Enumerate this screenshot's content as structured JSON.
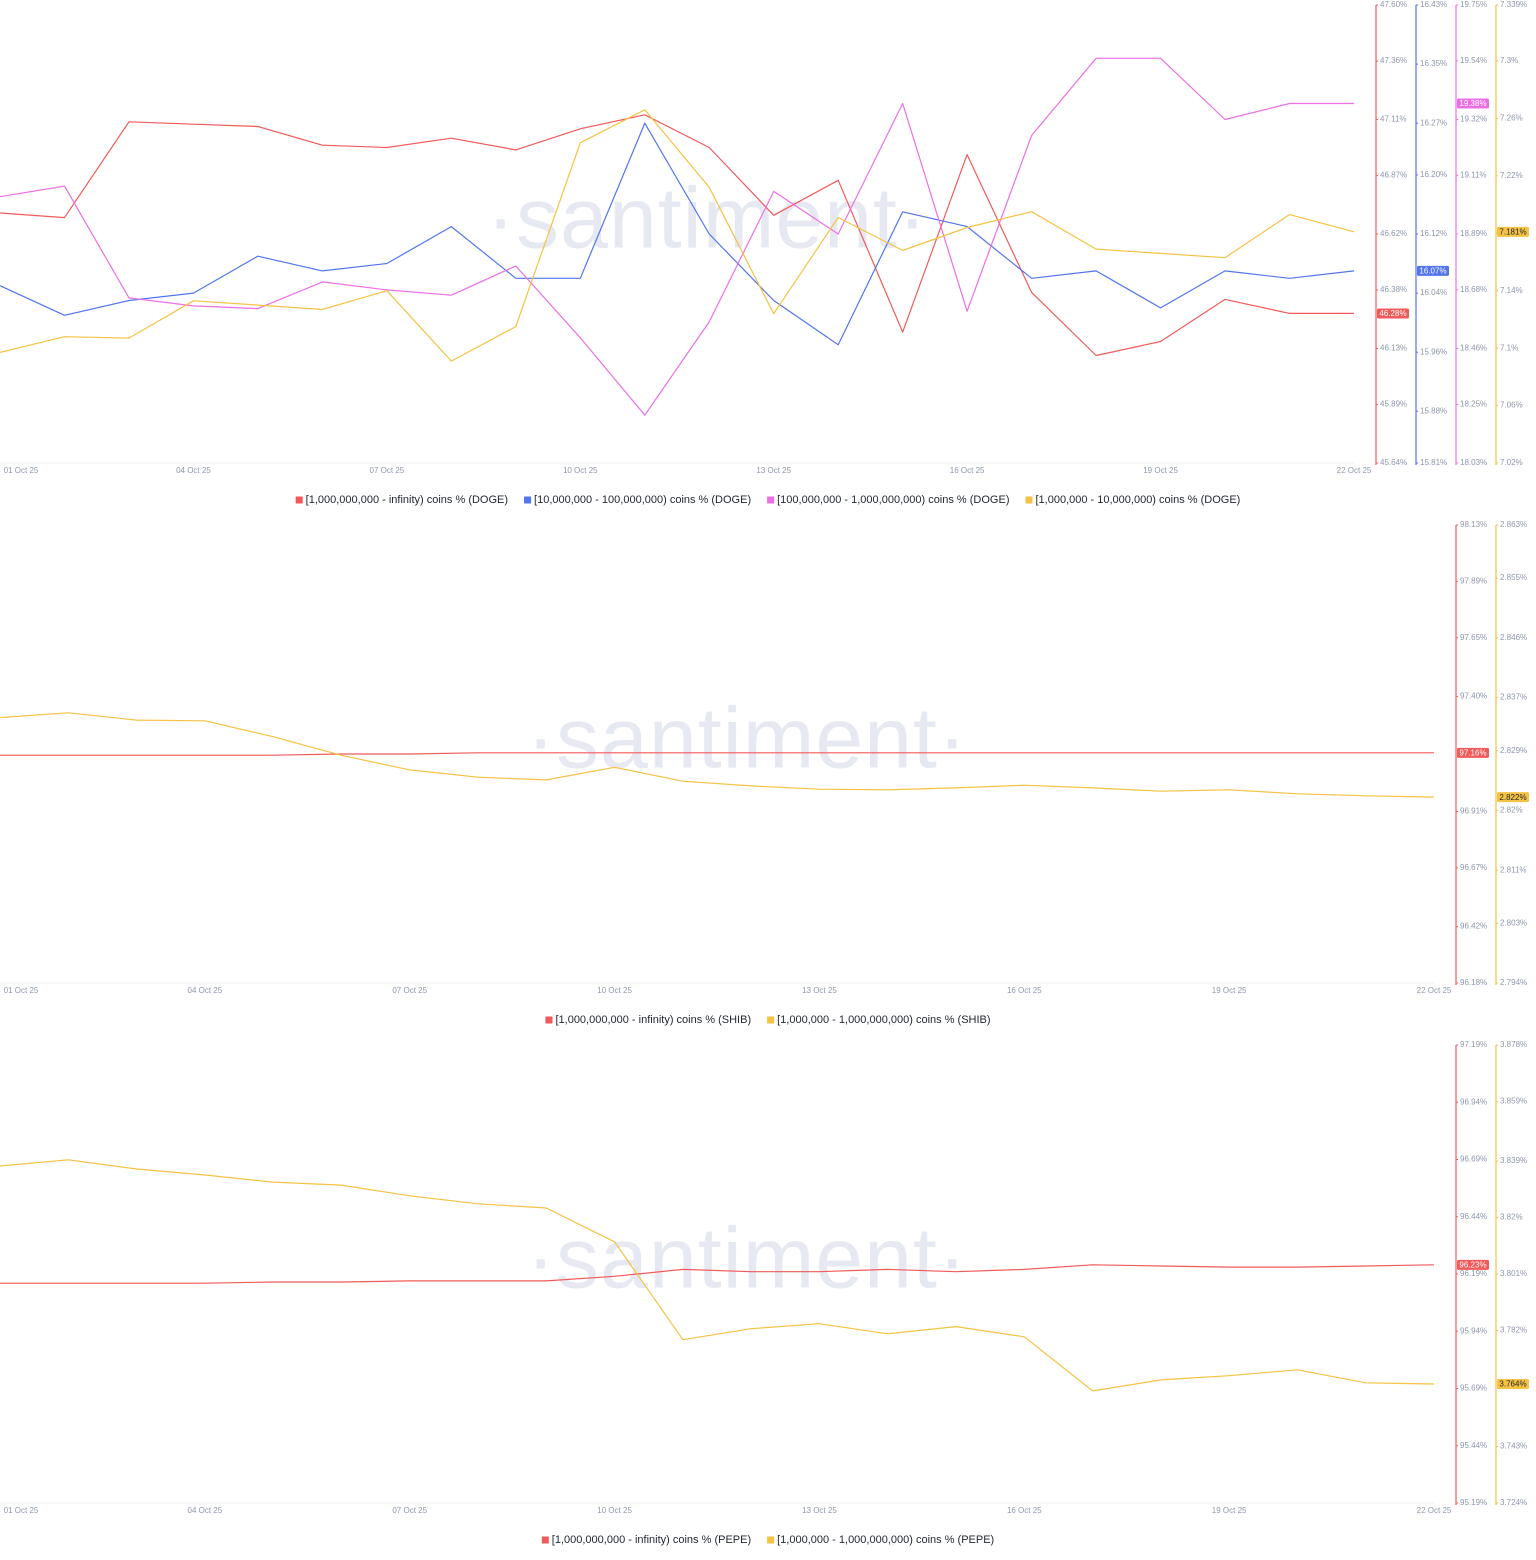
{
  "chart_data": [
    {
      "type": "line",
      "watermark": "·santiment·",
      "categories": [
        "01 Oct 25",
        null,
        null,
        "04 Oct 25",
        null,
        null,
        "07 Oct 25",
        null,
        null,
        "10 Oct 25",
        null,
        null,
        "13 Oct 25",
        null,
        null,
        "16 Oct 25",
        null,
        null,
        "19 Oct 25",
        null,
        null,
        "22 Oct 25"
      ],
      "series": [
        {
          "name": "[1,000,000,000 - infinity) coins % (DOGE)",
          "color": "#f25a5a",
          "last_value_label": "46.28%",
          "values": [
            46.71,
            46.69,
            47.1,
            47.09,
            47.08,
            47.0,
            46.99,
            47.03,
            46.98,
            47.07,
            47.13,
            46.99,
            46.7,
            46.85,
            46.2,
            46.96,
            46.37,
            46.1,
            46.16,
            46.34,
            46.28,
            46.28
          ],
          "ylim": [
            45.64,
            47.6
          ],
          "yticks": [
            {
              "value": 47.6,
              "label": "47.60%"
            },
            {
              "value": 47.36,
              "label": "47.36%"
            },
            {
              "value": 47.11,
              "label": "47.11%"
            },
            {
              "value": 46.87,
              "label": "46.87%"
            },
            {
              "value": 46.62,
              "label": "46.62%"
            },
            {
              "value": 46.38,
              "label": "46.38%"
            },
            {
              "value": 46.13,
              "label": "46.13%"
            },
            {
              "value": 45.89,
              "label": "45.89%"
            },
            {
              "value": 45.64,
              "label": "45.64%"
            }
          ]
        },
        {
          "name": "[10,000,000 - 100,000,000) coins % (DOGE)",
          "color": "#5274ef",
          "last_value_label": "16.07%",
          "values": [
            16.05,
            16.01,
            16.03,
            16.04,
            16.09,
            16.07,
            16.08,
            16.13,
            16.06,
            16.06,
            16.27,
            16.12,
            16.03,
            15.97,
            16.15,
            16.13,
            16.06,
            16.07,
            16.02,
            16.07,
            16.06,
            16.07
          ],
          "ylim": [
            15.81,
            16.43
          ],
          "yticks": [
            {
              "value": 16.43,
              "label": "16.43%"
            },
            {
              "value": 16.35,
              "label": "16.35%"
            },
            {
              "value": 16.27,
              "label": "16.27%"
            },
            {
              "value": 16.2,
              "label": "16.20%"
            },
            {
              "value": 16.12,
              "label": "16.12%"
            },
            {
              "value": 16.04,
              "label": "16.04%"
            },
            {
              "value": 15.96,
              "label": "15.96%"
            },
            {
              "value": 15.88,
              "label": "15.88%"
            },
            {
              "value": 15.81,
              "label": "15.81%"
            }
          ]
        },
        {
          "name": "[100,000,000 - 1,000,000,000) coins % (DOGE)",
          "color": "#ec6fe6",
          "last_value_label": "19.38%",
          "values": [
            19.03,
            19.07,
            18.65,
            18.62,
            18.61,
            18.71,
            18.68,
            18.66,
            18.77,
            18.5,
            18.21,
            18.56,
            19.05,
            18.89,
            19.38,
            18.6,
            19.26,
            19.55,
            19.55,
            19.32,
            19.38,
            19.38
          ],
          "ylim": [
            18.03,
            19.75
          ],
          "yticks": [
            {
              "value": 19.75,
              "label": "19.75%"
            },
            {
              "value": 19.54,
              "label": "19.54%"
            },
            {
              "value": 19.32,
              "label": "19.32%"
            },
            {
              "value": 19.11,
              "label": "19.11%"
            },
            {
              "value": 18.89,
              "label": "18.89%"
            },
            {
              "value": 18.68,
              "label": "18.68%"
            },
            {
              "value": 18.46,
              "label": "18.46%"
            },
            {
              "value": 18.25,
              "label": "18.25%"
            },
            {
              "value": 18.03,
              "label": "18.03%"
            }
          ]
        },
        {
          "name": "[1,000,000 - 10,000,000) coins % (DOGE)",
          "color": "#f5c242",
          "last_value_label": "7.181%",
          "values": [
            7.097,
            7.108,
            7.107,
            7.133,
            7.13,
            7.127,
            7.14,
            7.091,
            7.115,
            7.243,
            7.266,
            7.212,
            7.124,
            7.191,
            7.168,
            7.184,
            7.195,
            7.169,
            7.166,
            7.163,
            7.193,
            7.181
          ],
          "ylim": [
            7.02,
            7.339
          ],
          "yticks": [
            {
              "value": 7.339,
              "label": "7.339%"
            },
            {
              "value": 7.3,
              "label": "7.3%"
            },
            {
              "value": 7.26,
              "label": "7.26%"
            },
            {
              "value": 7.22,
              "label": "7.22%"
            },
            {
              "value": 7.18,
              "label": "7.18%"
            },
            {
              "value": 7.14,
              "label": "7.14%"
            },
            {
              "value": 7.1,
              "label": "7.1%"
            },
            {
              "value": 7.06,
              "label": "7.06%"
            },
            {
              "value": 7.02,
              "label": "7.02%"
            }
          ]
        }
      ]
    },
    {
      "type": "line",
      "watermark": "·santiment·",
      "categories": [
        "01 Oct 25",
        null,
        null,
        "04 Oct 25",
        null,
        null,
        "07 Oct 25",
        null,
        null,
        "10 Oct 25",
        null,
        null,
        "13 Oct 25",
        null,
        null,
        "16 Oct 25",
        null,
        null,
        "19 Oct 25",
        null,
        null,
        "22 Oct 25"
      ],
      "series": [
        {
          "name": "[1,000,000,000 - infinity) coins % (SHIB)",
          "color": "#f25a5a",
          "last_value_label": "97.16%",
          "values": [
            97.15,
            97.15,
            97.15,
            97.15,
            97.15,
            97.155,
            97.155,
            97.16,
            97.16,
            97.16,
            97.16,
            97.16,
            97.16,
            97.16,
            97.16,
            97.16,
            97.16,
            97.16,
            97.16,
            97.16,
            97.16,
            97.16
          ],
          "ylim": [
            96.18,
            98.13
          ],
          "yticks": [
            {
              "value": 98.13,
              "label": "98.13%"
            },
            {
              "value": 97.89,
              "label": "97.89%"
            },
            {
              "value": 97.65,
              "label": "97.65%"
            },
            {
              "value": 97.4,
              "label": "97.40%"
            },
            {
              "value": 96.91,
              "label": "96.91%"
            },
            {
              "value": 96.67,
              "label": "96.67%"
            },
            {
              "value": 96.42,
              "label": "96.42%"
            },
            {
              "value": 96.18,
              "label": "96.18%"
            }
          ]
        },
        {
          "name": "[1,000,000 - 1,000,000,000) coins % (SHIB)",
          "color": "#f5c242",
          "last_value_label": "2.822%",
          "values": [
            2.834,
            2.8347,
            2.8336,
            2.8335,
            2.8311,
            2.8283,
            2.8261,
            2.825,
            2.8246,
            2.8265,
            2.8244,
            2.8237,
            2.8232,
            2.8231,
            2.8234,
            2.8238,
            2.8234,
            2.8229,
            2.8231,
            2.8225,
            2.8222,
            2.822
          ],
          "ylim": [
            2.794,
            2.863
          ],
          "yticks": [
            {
              "value": 2.863,
              "label": "2.863%"
            },
            {
              "value": 2.855,
              "label": "2.855%"
            },
            {
              "value": 2.846,
              "label": "2.846%"
            },
            {
              "value": 2.837,
              "label": "2.837%"
            },
            {
              "value": 2.829,
              "label": "2.829%"
            },
            {
              "value": 2.82,
              "label": "2.82%"
            },
            {
              "value": 2.811,
              "label": "2.811%"
            },
            {
              "value": 2.803,
              "label": "2.803%"
            },
            {
              "value": 2.794,
              "label": "2.794%"
            }
          ]
        }
      ]
    },
    {
      "type": "line",
      "watermark": "·santiment·",
      "categories": [
        "01 Oct 25",
        null,
        null,
        "04 Oct 25",
        null,
        null,
        "07 Oct 25",
        null,
        null,
        "10 Oct 25",
        null,
        null,
        "13 Oct 25",
        null,
        null,
        "16 Oct 25",
        null,
        null,
        "19 Oct 25",
        null,
        null,
        "22 Oct 25"
      ],
      "series": [
        {
          "name": "[1,000,000,000 - infinity) coins % (PEPE)",
          "color": "#f25a5a",
          "last_value_label": "96.23%",
          "values": [
            96.15,
            96.15,
            96.15,
            96.15,
            96.155,
            96.155,
            96.16,
            96.16,
            96.16,
            96.18,
            96.21,
            96.2,
            96.2,
            96.21,
            96.2,
            96.21,
            96.23,
            96.225,
            96.22,
            96.22,
            96.225,
            96.23
          ],
          "ylim": [
            95.19,
            97.19
          ],
          "yticks": [
            {
              "value": 97.19,
              "label": "97.19%"
            },
            {
              "value": 96.94,
              "label": "96.94%"
            },
            {
              "value": 96.69,
              "label": "96.69%"
            },
            {
              "value": 96.44,
              "label": "96.44%"
            },
            {
              "value": 96.19,
              "label": "96.19%"
            },
            {
              "value": 95.94,
              "label": "95.94%"
            },
            {
              "value": 95.69,
              "label": "95.69%"
            },
            {
              "value": 95.44,
              "label": "95.44%"
            },
            {
              "value": 95.19,
              "label": "95.19%"
            }
          ]
        },
        {
          "name": "[1,000,000 - 1,000,000,000) coins % (PEPE)",
          "color": "#f5c242",
          "last_value_label": "3.764%",
          "values": [
            3.8373,
            3.8394,
            3.8363,
            3.8343,
            3.8319,
            3.8309,
            3.8273,
            3.8246,
            3.8232,
            3.8118,
            3.7789,
            3.7826,
            3.7843,
            3.7809,
            3.7833,
            3.7799,
            3.7617,
            3.7654,
            3.7668,
            3.7688,
            3.7644,
            3.764
          ],
          "ylim": [
            3.724,
            3.878
          ],
          "yticks": [
            {
              "value": 3.878,
              "label": "3.878%"
            },
            {
              "value": 3.859,
              "label": "3.859%"
            },
            {
              "value": 3.839,
              "label": "3.839%"
            },
            {
              "value": 3.82,
              "label": "3.82%"
            },
            {
              "value": 3.801,
              "label": "3.801%"
            },
            {
              "value": 3.782,
              "label": "3.782%"
            },
            {
              "value": 3.743,
              "label": "3.743%"
            },
            {
              "value": 3.724,
              "label": "3.724%"
            }
          ]
        }
      ]
    }
  ]
}
